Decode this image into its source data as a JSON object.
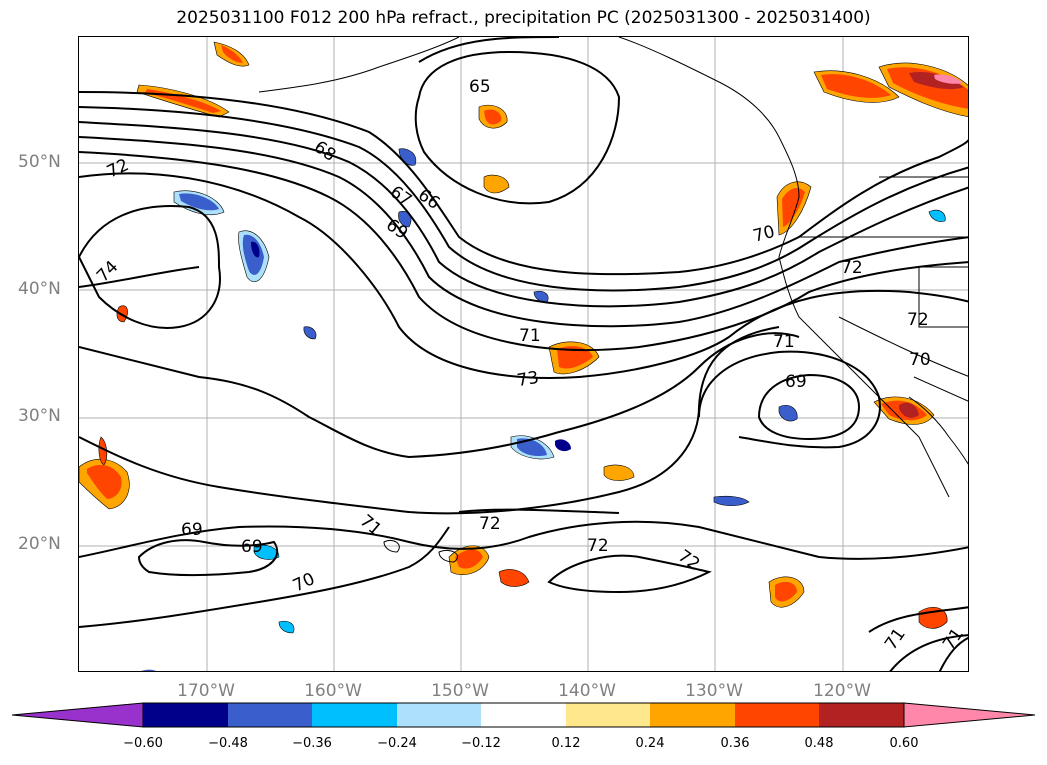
{
  "title": "2025031100 F012 200 hPa refract., precipitation PC (2025031300 - 2025031400)",
  "lat_labels": [
    "50°N",
    "40°N",
    "30°N",
    "20°N"
  ],
  "lon_labels": [
    "170°W",
    "160°W",
    "150°W",
    "140°W",
    "130°W",
    "120°W"
  ],
  "contour_labels": [
    "65",
    "68",
    "67",
    "66",
    "69",
    "72",
    "74",
    "70",
    "72",
    "71",
    "73",
    "71",
    "69",
    "72",
    "70",
    "69",
    "69",
    "71",
    "72",
    "72",
    "72",
    "70",
    "71",
    "71"
  ],
  "colorbar": {
    "tick_labels": [
      "−0.60",
      "−0.48",
      "−0.36",
      "−0.24",
      "−0.12",
      "0.12",
      "0.24",
      "0.36",
      "0.48",
      "0.60"
    ],
    "colors": [
      "#9932CC",
      "#00008B",
      "#3A5FCD",
      "#00BFFF",
      "#ADE0FA",
      "#FFFFFF",
      "#FFE88C",
      "#FFA500",
      "#FF4500",
      "#B22222",
      "#FF88AA"
    ]
  }
}
